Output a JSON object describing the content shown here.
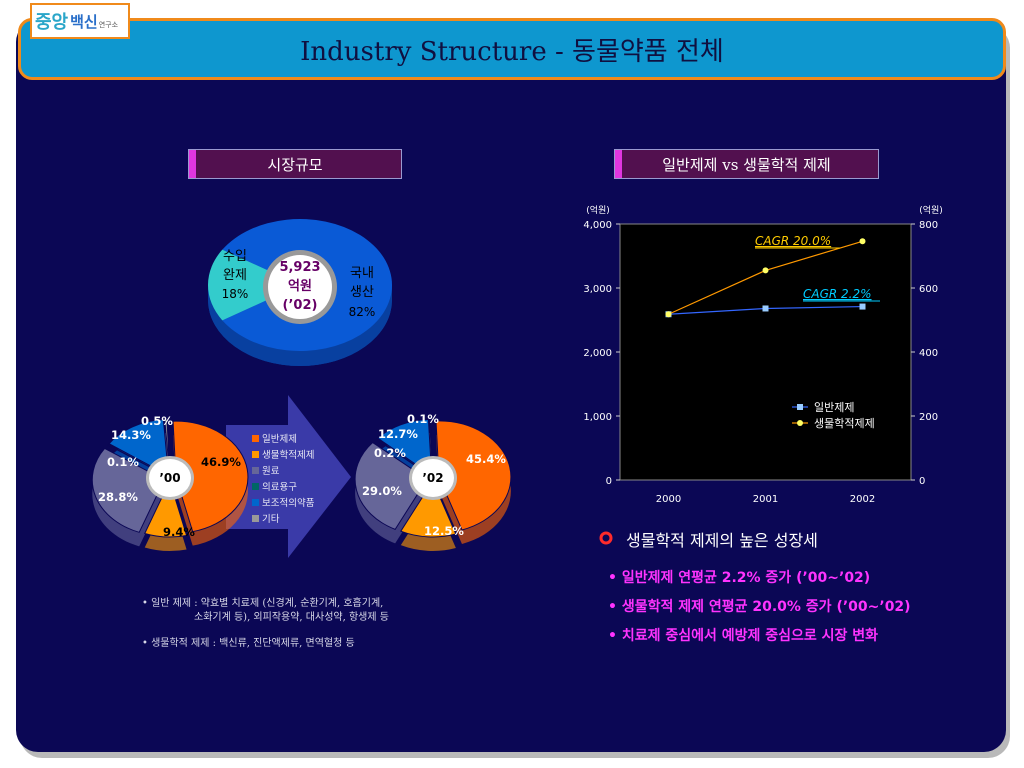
{
  "header": {
    "logo_main": "중앙",
    "logo_sub": "백신",
    "logo_small": "연구소",
    "title": "Industry Structure - 동물약품 전체"
  },
  "left_section": {
    "title": "시장규모",
    "market_pie": {
      "center_line1": "5,923",
      "center_line2": "억원",
      "center_line3": "(’02)",
      "import_label": [
        "수입",
        "완제",
        "18%"
      ],
      "domestic_label": [
        "국내",
        "생산",
        "82%"
      ]
    },
    "legend": [
      "일반제제",
      "생물학적제제",
      "원료",
      "의료용구",
      "보조적의약품",
      "기타"
    ],
    "notes": [
      "• 일반 제제 : 약효별 치료제 (신경계, 순환기계, 호흡기계,",
      "소화기계 등), 외피작용약, 대사성약, 항생제 등",
      "• 생물학적 제제 : 백신류, 진단액제류, 면역혈청 등"
    ]
  },
  "right_section": {
    "title": "일반제제 vs 생물학적 제제",
    "heading": "생물학적 제제의 높은 성장세",
    "bullets": [
      "• 일반제제 연평균 2.2% 증가 (’00~’02)",
      "• 생물학적 제제 연평균 20.0% 증가 (’00~’02)",
      "• 치료제 중심에서 예방제 중심으로 시장 변화"
    ]
  },
  "colors": {
    "background": "#0b0755",
    "title_bar": "#0e97cf",
    "accent_orange": "#f08a1b",
    "general": "#ff6600",
    "bio": "#ff9900",
    "raw": "#666699",
    "medical": "#006666",
    "auxiliary": "#0066cc",
    "other": "#999999",
    "domestic": "#0a5ad6",
    "import": "#33cccc"
  },
  "chart_data": [
    {
      "type": "pie",
      "title": "",
      "slices": [
        {
          "name": "국내 생산",
          "value": 82,
          "color": "#0a5ad6"
        },
        {
          "name": "수입 완제",
          "value": 18,
          "color": "#33cccc"
        }
      ],
      "total": "5,923 억원 (’02)"
    },
    {
      "type": "pie",
      "title": "’00",
      "slices": [
        {
          "name": "일반제제",
          "value": 46.9,
          "label": "46.9%",
          "color": "#ff6600"
        },
        {
          "name": "생물학적제제",
          "value": 9.4,
          "label": "9.4%",
          "color": "#ff9900"
        },
        {
          "name": "원료",
          "value": 28.8,
          "label": "28.8%",
          "color": "#666699"
        },
        {
          "name": "의료용구",
          "value": 0.1,
          "label": "0.1%",
          "color": "#006666"
        },
        {
          "name": "보조적의약품",
          "value": 14.3,
          "label": "14.3%",
          "color": "#0066cc"
        },
        {
          "name": "기타",
          "value": 0.5,
          "label": "0.5%",
          "color": "#999999"
        }
      ]
    },
    {
      "type": "pie",
      "title": "’02",
      "slices": [
        {
          "name": "일반제제",
          "value": 45.4,
          "label": "45.4%",
          "color": "#ff6600"
        },
        {
          "name": "생물학적제제",
          "value": 12.5,
          "label": "12.5%",
          "color": "#ff9900"
        },
        {
          "name": "원료",
          "value": 29.0,
          "label": "29.0%",
          "color": "#666699"
        },
        {
          "name": "의료용구",
          "value": 0.2,
          "label": "0.2%",
          "color": "#006666"
        },
        {
          "name": "보조적의약품",
          "value": 12.7,
          "label": "12.7%",
          "color": "#0066cc"
        },
        {
          "name": "기타",
          "value": 0.1,
          "label": "0.1%",
          "color": "#999999"
        }
      ]
    },
    {
      "type": "line",
      "x": [
        "2000",
        "2001",
        "2002"
      ],
      "ylim_left": [
        0,
        4000
      ],
      "ylim_right": [
        0,
        800
      ],
      "yticks_left": [
        "0",
        "1,000",
        "2,000",
        "3,000",
        "4,000"
      ],
      "yticks_right": [
        "0",
        "200",
        "400",
        "600",
        "800"
      ],
      "unit_left": "(억원)",
      "unit_right": "(억원)",
      "series": [
        {
          "name": "일반제제",
          "axis": "left",
          "values": [
            2590,
            2680,
            2710
          ],
          "color": "#3366ff",
          "marker": "square",
          "marker_color": "#99ccff"
        },
        {
          "name": "생물학적제제",
          "axis": "right",
          "values": [
            518,
            655,
            746
          ],
          "color": "#ff9900",
          "marker": "circle",
          "marker_color": "#ffff66"
        }
      ],
      "annotations": [
        {
          "text": "CAGR 20.0%",
          "color": "#ffcc00"
        },
        {
          "text": "CAGR 2.2%",
          "color": "#00ccff"
        }
      ]
    }
  ]
}
